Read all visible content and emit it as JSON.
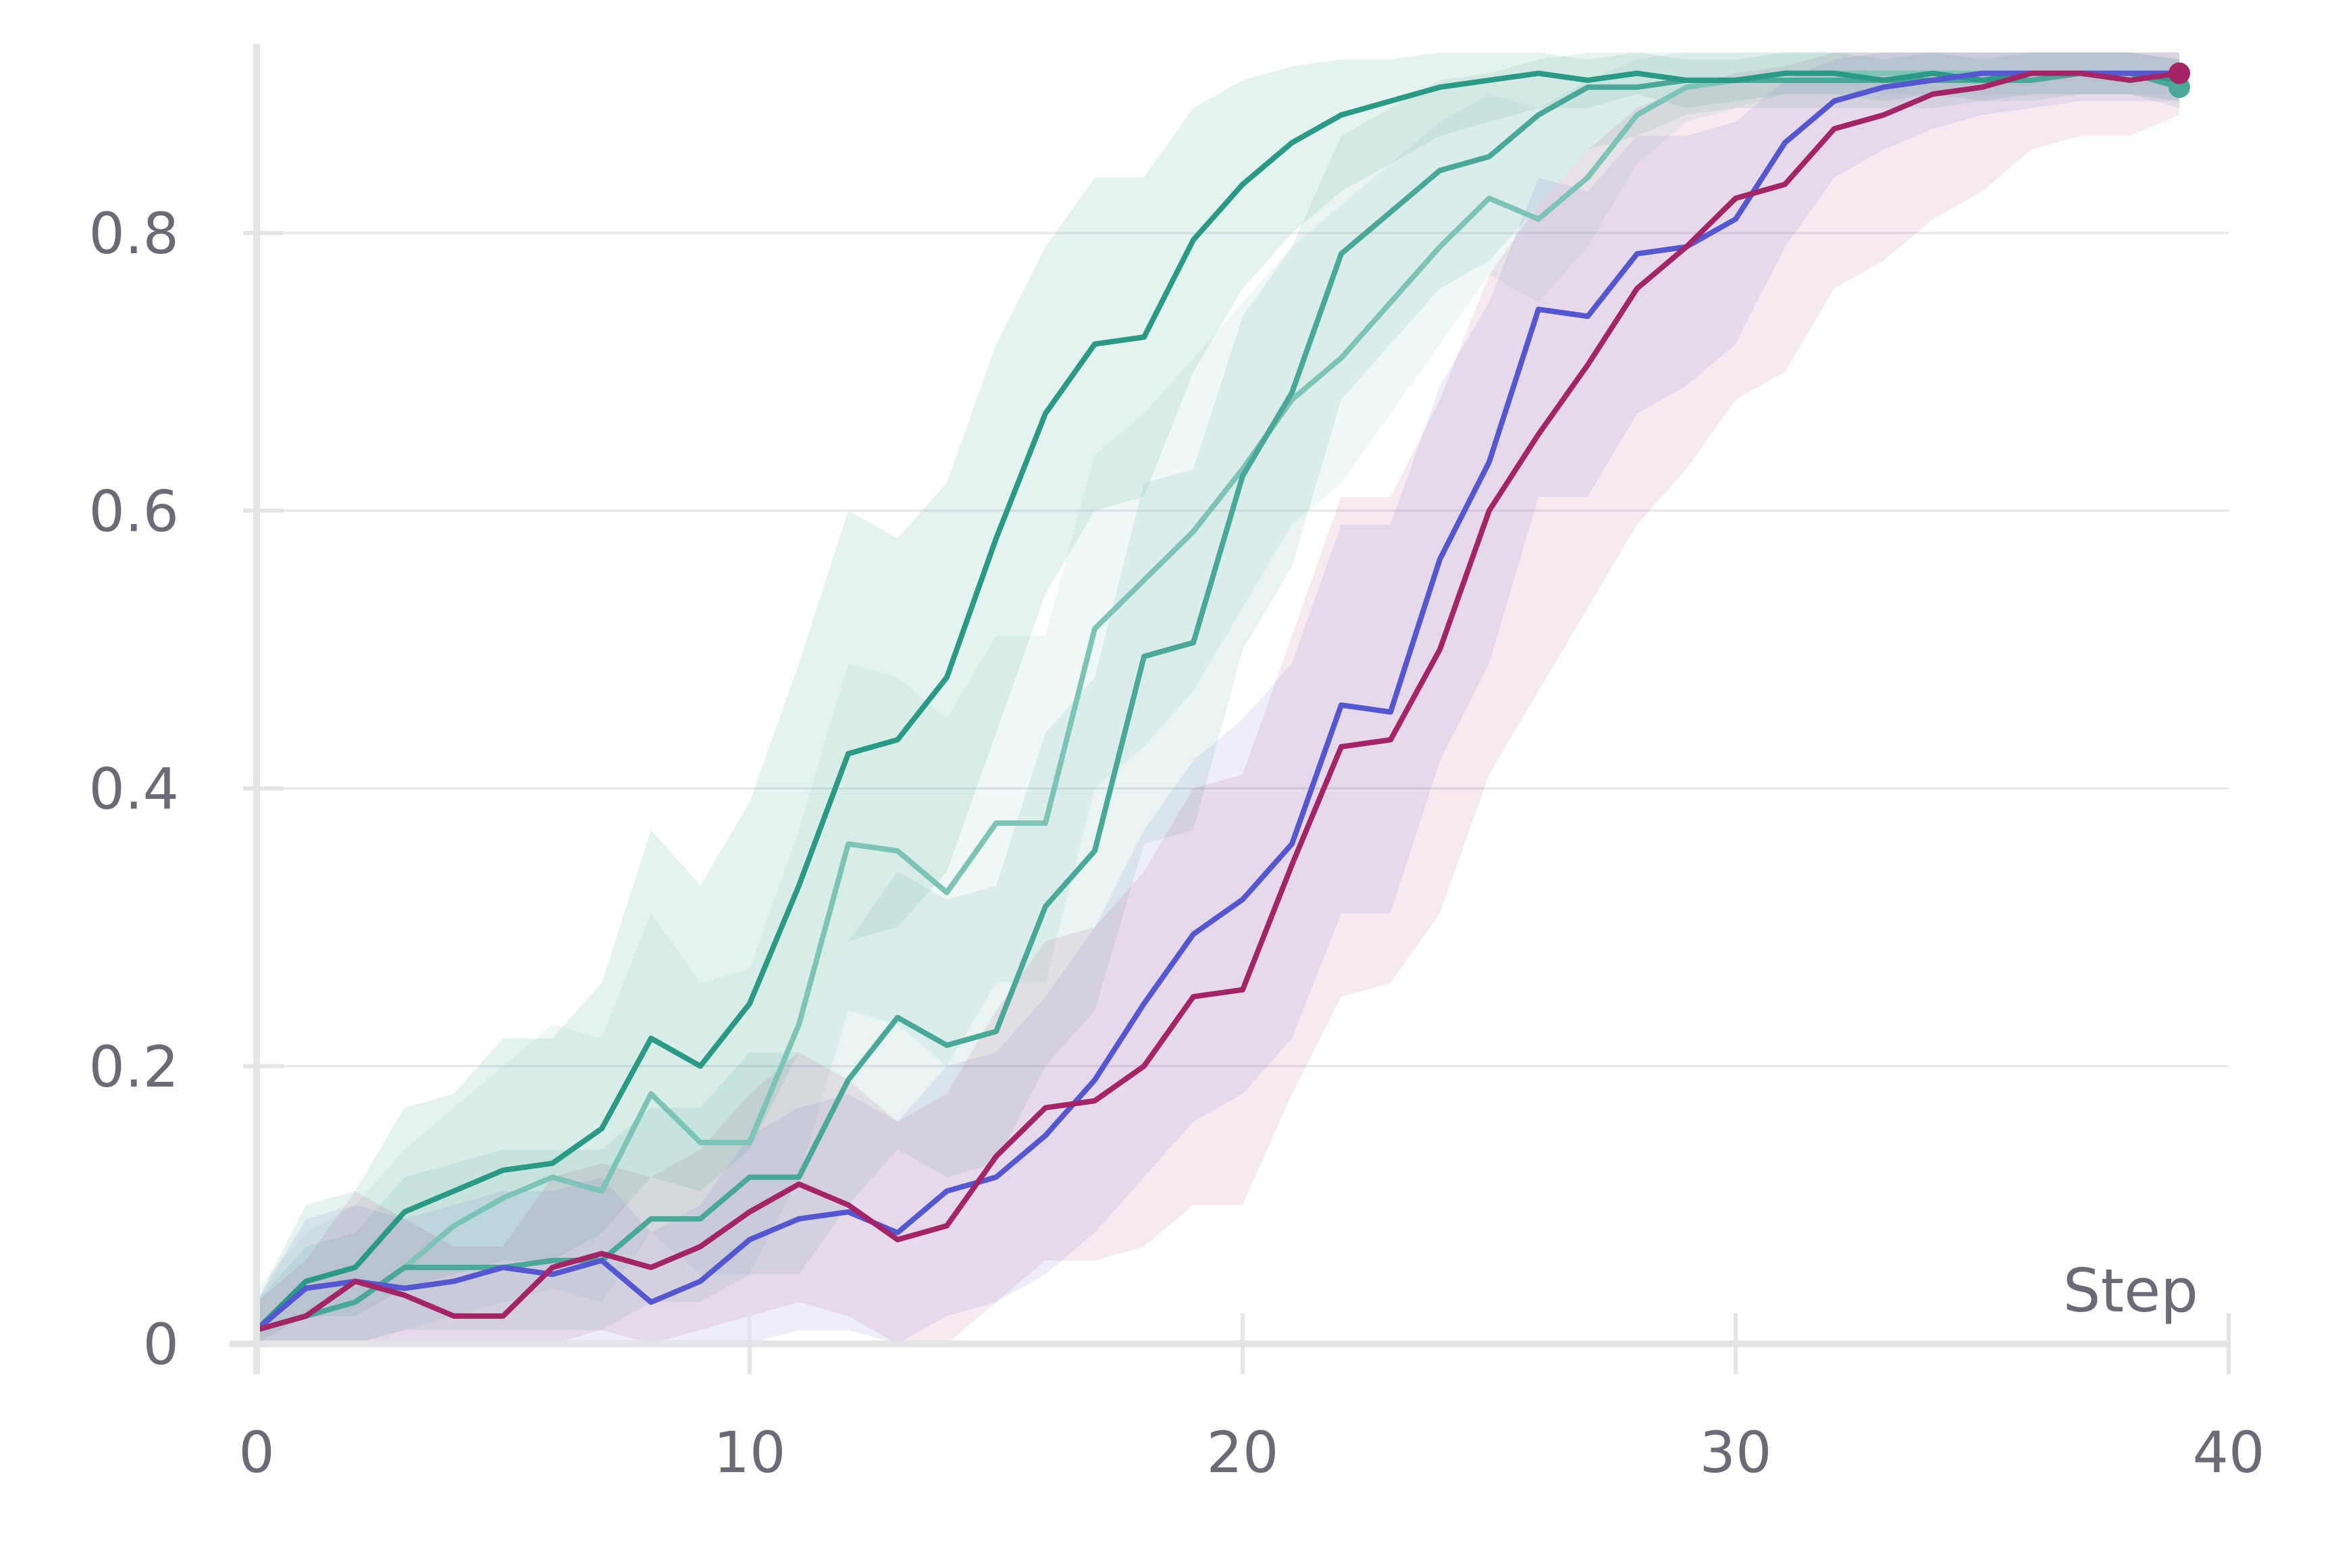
{
  "chart_data": {
    "type": "line",
    "title": "",
    "xlabel": "Step",
    "ylabel": "",
    "xlim": [
      0,
      40
    ],
    "ylim": [
      0,
      0.92
    ],
    "x_ticks": [
      {
        "value": 0,
        "label": "0"
      },
      {
        "value": 10,
        "label": "10"
      },
      {
        "value": 20,
        "label": "20"
      },
      {
        "value": 30,
        "label": "30"
      },
      {
        "value": 40,
        "label": "40"
      }
    ],
    "y_ticks": [
      {
        "value": 0,
        "label": "0"
      },
      {
        "value": 0.2,
        "label": "0.2"
      },
      {
        "value": 0.4,
        "label": "0.4"
      },
      {
        "value": 0.6,
        "label": "0.6"
      },
      {
        "value": 0.8,
        "label": "0.8"
      }
    ],
    "grid": true,
    "legend": "none",
    "x": [
      0,
      1,
      2,
      3,
      4,
      5,
      6,
      7,
      8,
      9,
      10,
      11,
      12,
      13,
      14,
      15,
      16,
      17,
      18,
      19,
      20,
      21,
      22,
      23,
      24,
      25,
      26,
      27,
      28,
      29,
      30,
      31,
      32,
      33,
      34,
      35,
      36,
      37,
      38,
      39
    ],
    "series": [
      {
        "name": "teal-dark",
        "color": "#2a9a86",
        "opacity": 1.0,
        "band_opacity": 0.12,
        "end_marker": false,
        "values": [
          0.01,
          0.045,
          0.055,
          0.095,
          0.11,
          0.125,
          0.13,
          0.155,
          0.22,
          0.2,
          0.245,
          0.33,
          0.425,
          0.435,
          0.48,
          0.58,
          0.67,
          0.72,
          0.725,
          0.795,
          0.835,
          0.865,
          0.885,
          0.895,
          0.905,
          0.91,
          0.915,
          0.91,
          0.915,
          0.91,
          0.91,
          0.915,
          0.915,
          0.91,
          0.915,
          0.91,
          0.915,
          0.915,
          0.915,
          0.91
        ],
        "lower": [
          0.0,
          0.02,
          0.02,
          0.04,
          0.05,
          0.06,
          0.06,
          0.08,
          0.12,
          0.11,
          0.14,
          0.21,
          0.29,
          0.3,
          0.34,
          0.44,
          0.54,
          0.6,
          0.61,
          0.7,
          0.76,
          0.8,
          0.83,
          0.85,
          0.87,
          0.88,
          0.89,
          0.89,
          0.9,
          0.89,
          0.895,
          0.9,
          0.9,
          0.895,
          0.9,
          0.895,
          0.9,
          0.9,
          0.9,
          0.895
        ],
        "upper": [
          0.03,
          0.1,
          0.11,
          0.17,
          0.18,
          0.22,
          0.22,
          0.26,
          0.37,
          0.33,
          0.39,
          0.49,
          0.6,
          0.58,
          0.62,
          0.72,
          0.79,
          0.84,
          0.84,
          0.89,
          0.91,
          0.92,
          0.925,
          0.925,
          0.93,
          0.93,
          0.93,
          0.925,
          0.93,
          0.925,
          0.925,
          0.93,
          0.93,
          0.925,
          0.93,
          0.925,
          0.93,
          0.93,
          0.93,
          0.925
        ]
      },
      {
        "name": "teal-light",
        "color": "#7dc4b6",
        "opacity": 1.0,
        "band_opacity": 0.12,
        "end_marker": false,
        "values": [
          0.01,
          0.02,
          0.03,
          0.055,
          0.085,
          0.105,
          0.12,
          0.11,
          0.18,
          0.145,
          0.145,
          0.23,
          0.36,
          0.355,
          0.325,
          0.375,
          0.375,
          0.515,
          0.55,
          0.585,
          0.63,
          0.68,
          0.71,
          0.75,
          0.79,
          0.825,
          0.81,
          0.84,
          0.885,
          0.905,
          0.91,
          0.915,
          0.915,
          0.915,
          0.915,
          0.915,
          0.915,
          0.915,
          0.915,
          0.915
        ],
        "lower": [
          0.0,
          0.0,
          0.0,
          0.01,
          0.02,
          0.03,
          0.04,
          0.03,
          0.08,
          0.05,
          0.05,
          0.12,
          0.24,
          0.23,
          0.2,
          0.26,
          0.26,
          0.4,
          0.43,
          0.47,
          0.53,
          0.59,
          0.62,
          0.67,
          0.72,
          0.77,
          0.75,
          0.79,
          0.85,
          0.88,
          0.89,
          0.9,
          0.9,
          0.9,
          0.9,
          0.9,
          0.9,
          0.9,
          0.9,
          0.9
        ],
        "upper": [
          0.04,
          0.08,
          0.1,
          0.14,
          0.17,
          0.2,
          0.23,
          0.22,
          0.31,
          0.26,
          0.27,
          0.37,
          0.49,
          0.48,
          0.45,
          0.51,
          0.51,
          0.64,
          0.67,
          0.71,
          0.75,
          0.79,
          0.82,
          0.85,
          0.88,
          0.9,
          0.89,
          0.91,
          0.925,
          0.93,
          0.93,
          0.93,
          0.93,
          0.93,
          0.93,
          0.93,
          0.93,
          0.93,
          0.93,
          0.93
        ]
      },
      {
        "name": "teal-mid",
        "color": "#4aa898",
        "opacity": 1.0,
        "band_opacity": 0.12,
        "end_marker": true,
        "values": [
          0.01,
          0.02,
          0.03,
          0.055,
          0.055,
          0.055,
          0.06,
          0.06,
          0.09,
          0.09,
          0.12,
          0.12,
          0.19,
          0.235,
          0.215,
          0.225,
          0.315,
          0.355,
          0.495,
          0.505,
          0.625,
          0.685,
          0.785,
          0.815,
          0.845,
          0.855,
          0.885,
          0.905,
          0.905,
          0.91,
          0.91,
          0.91,
          0.91,
          0.91,
          0.91,
          0.91,
          0.91,
          0.915,
          0.915,
          0.905
        ],
        "lower": [
          0.0,
          0.0,
          0.0,
          0.01,
          0.01,
          0.01,
          0.01,
          0.01,
          0.03,
          0.03,
          0.05,
          0.05,
          0.1,
          0.14,
          0.12,
          0.13,
          0.2,
          0.24,
          0.36,
          0.37,
          0.5,
          0.56,
          0.68,
          0.72,
          0.76,
          0.78,
          0.82,
          0.86,
          0.87,
          0.885,
          0.89,
          0.89,
          0.89,
          0.89,
          0.89,
          0.895,
          0.895,
          0.9,
          0.9,
          0.89
        ],
        "upper": [
          0.03,
          0.07,
          0.08,
          0.12,
          0.13,
          0.14,
          0.14,
          0.14,
          0.17,
          0.17,
          0.21,
          0.21,
          0.29,
          0.34,
          0.32,
          0.33,
          0.44,
          0.48,
          0.62,
          0.63,
          0.74,
          0.79,
          0.87,
          0.89,
          0.91,
          0.915,
          0.925,
          0.93,
          0.93,
          0.93,
          0.93,
          0.93,
          0.93,
          0.93,
          0.93,
          0.93,
          0.93,
          0.93,
          0.93,
          0.925
        ]
      },
      {
        "name": "blue",
        "color": "#5457cf",
        "opacity": 1.0,
        "band_opacity": 0.1,
        "end_marker": false,
        "values": [
          0.01,
          0.04,
          0.045,
          0.04,
          0.045,
          0.055,
          0.05,
          0.06,
          0.03,
          0.045,
          0.075,
          0.09,
          0.095,
          0.08,
          0.11,
          0.12,
          0.15,
          0.19,
          0.245,
          0.295,
          0.32,
          0.36,
          0.46,
          0.455,
          0.565,
          0.635,
          0.745,
          0.74,
          0.785,
          0.79,
          0.81,
          0.865,
          0.895,
          0.905,
          0.91,
          0.915,
          0.915,
          0.915,
          0.915,
          0.915
        ],
        "lower": [
          0.0,
          0.0,
          0.0,
          0.0,
          0.0,
          0.0,
          0.0,
          0.0,
          0.0,
          0.0,
          0.0,
          0.01,
          0.01,
          0.0,
          0.02,
          0.03,
          0.05,
          0.08,
          0.12,
          0.16,
          0.18,
          0.22,
          0.31,
          0.31,
          0.42,
          0.49,
          0.61,
          0.61,
          0.67,
          0.69,
          0.72,
          0.79,
          0.84,
          0.86,
          0.875,
          0.885,
          0.89,
          0.895,
          0.895,
          0.895
        ],
        "upper": [
          0.03,
          0.09,
          0.1,
          0.09,
          0.1,
          0.11,
          0.11,
          0.12,
          0.08,
          0.1,
          0.15,
          0.17,
          0.18,
          0.16,
          0.2,
          0.21,
          0.25,
          0.3,
          0.37,
          0.42,
          0.45,
          0.49,
          0.59,
          0.59,
          0.69,
          0.75,
          0.84,
          0.83,
          0.87,
          0.87,
          0.88,
          0.91,
          0.925,
          0.93,
          0.93,
          0.93,
          0.93,
          0.93,
          0.93,
          0.93
        ]
      },
      {
        "name": "magenta",
        "color": "#a32467",
        "opacity": 1.0,
        "band_opacity": 0.1,
        "end_marker": true,
        "values": [
          0.01,
          0.02,
          0.045,
          0.035,
          0.02,
          0.02,
          0.055,
          0.065,
          0.055,
          0.07,
          0.095,
          0.115,
          0.1,
          0.075,
          0.085,
          0.135,
          0.17,
          0.175,
          0.2,
          0.25,
          0.255,
          0.345,
          0.43,
          0.435,
          0.5,
          0.6,
          0.655,
          0.705,
          0.76,
          0.79,
          0.825,
          0.835,
          0.875,
          0.885,
          0.9,
          0.905,
          0.915,
          0.915,
          0.91,
          0.915
        ],
        "lower": [
          0.0,
          0.0,
          0.0,
          0.0,
          0.0,
          0.0,
          0.0,
          0.01,
          0.0,
          0.01,
          0.02,
          0.03,
          0.02,
          0.0,
          0.0,
          0.03,
          0.06,
          0.06,
          0.07,
          0.1,
          0.1,
          0.18,
          0.25,
          0.26,
          0.31,
          0.41,
          0.47,
          0.53,
          0.59,
          0.63,
          0.68,
          0.7,
          0.76,
          0.78,
          0.81,
          0.83,
          0.86,
          0.87,
          0.87,
          0.885
        ],
        "upper": [
          0.03,
          0.06,
          0.11,
          0.09,
          0.07,
          0.07,
          0.12,
          0.13,
          0.12,
          0.14,
          0.18,
          0.21,
          0.19,
          0.16,
          0.18,
          0.24,
          0.29,
          0.3,
          0.34,
          0.4,
          0.41,
          0.51,
          0.61,
          0.61,
          0.68,
          0.77,
          0.82,
          0.86,
          0.89,
          0.905,
          0.915,
          0.92,
          0.93,
          0.93,
          0.93,
          0.93,
          0.93,
          0.93,
          0.93,
          0.93
        ]
      }
    ]
  }
}
